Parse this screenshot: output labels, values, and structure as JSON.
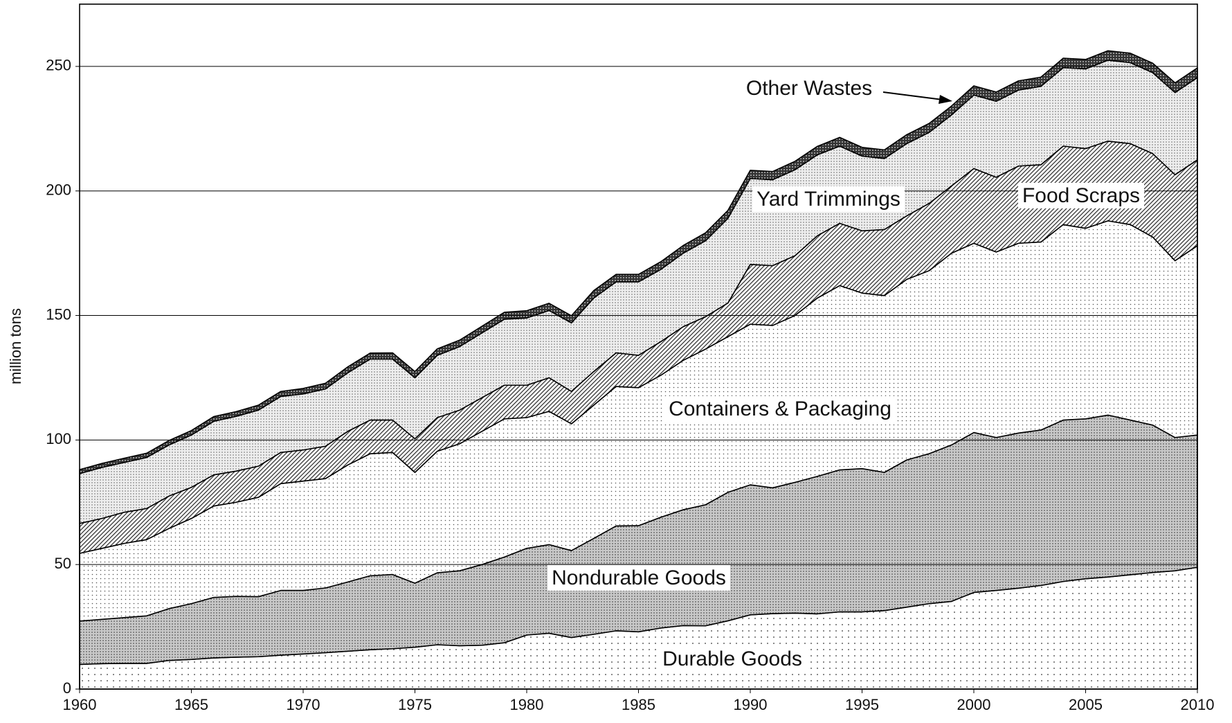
{
  "chart_data": {
    "type": "stacked_area",
    "y_label": "million tons",
    "x": [
      1960,
      1961,
      1962,
      1963,
      1964,
      1965,
      1966,
      1967,
      1968,
      1969,
      1970,
      1971,
      1972,
      1973,
      1974,
      1975,
      1976,
      1977,
      1978,
      1979,
      1980,
      1981,
      1982,
      1983,
      1984,
      1985,
      1986,
      1987,
      1988,
      1989,
      1990,
      1991,
      1992,
      1993,
      1994,
      1995,
      1996,
      1997,
      1998,
      1999,
      2000,
      2001,
      2002,
      2003,
      2004,
      2005,
      2006,
      2007,
      2008,
      2009,
      2010
    ],
    "xlim": [
      1960,
      2010
    ],
    "xticks": [
      1960,
      1965,
      1970,
      1975,
      1980,
      1985,
      1990,
      1995,
      2000,
      2005,
      2010
    ],
    "ylim": [
      0,
      275
    ],
    "yticks": [
      0,
      50,
      100,
      150,
      200,
      250
    ],
    "grid": true,
    "series": [
      {
        "name": "Durable Goods",
        "color": "#ffffff",
        "values": [
          9.9,
          10.2,
          10.3,
          10.3,
          11.5,
          11.9,
          12.5,
          12.8,
          13.0,
          13.6,
          14.1,
          14.6,
          15.2,
          15.8,
          16.2,
          16.8,
          17.8,
          17.4,
          17.6,
          18.6,
          21.7,
          22.4,
          20.7,
          22.0,
          23.4,
          23.0,
          24.5,
          25.5,
          25.4,
          27.4,
          29.8,
          30.3,
          30.5,
          30.2,
          31.0,
          31.0,
          31.5,
          32.9,
          34.3,
          35.2,
          38.8,
          39.6,
          40.5,
          41.6,
          43.2,
          44.3,
          45.0,
          45.9,
          46.8,
          47.5,
          48.9
        ]
      },
      {
        "name": "Nondurable Goods",
        "color": "#c8c8c8",
        "values": [
          17.4,
          17.8,
          18.4,
          19.1,
          20.8,
          22.4,
          24.3,
          24.4,
          24.1,
          26.0,
          25.5,
          26.0,
          27.8,
          29.7,
          29.8,
          25.7,
          28.9,
          30.1,
          32.4,
          34.4,
          34.8,
          35.6,
          34.9,
          38.5,
          42.1,
          42.6,
          44.5,
          46.5,
          48.6,
          51.6,
          52.2,
          50.5,
          52.5,
          55.2,
          57.0,
          57.5,
          55.5,
          59.1,
          60.2,
          62.8,
          64.2,
          61.4,
          62.3,
          62.4,
          64.8,
          64.2,
          65.0,
          62.1,
          59.2,
          53.5,
          53.1
        ]
      },
      {
        "name": "Containers & Packaging",
        "color": "#ffffff",
        "values": [
          27.2,
          28.5,
          29.8,
          30.6,
          32.2,
          34.2,
          36.7,
          37.8,
          39.9,
          42.9,
          43.9,
          43.9,
          47.0,
          49.0,
          49.0,
          44.5,
          48.8,
          51.0,
          53.5,
          55.5,
          52.5,
          53.5,
          50.9,
          53.5,
          56.0,
          55.4,
          57.0,
          60.0,
          62.5,
          62.5,
          64.5,
          65.2,
          67.0,
          71.6,
          74.0,
          70.5,
          71.0,
          72.5,
          73.5,
          77.0,
          76.0,
          74.5,
          76.2,
          75.5,
          78.5,
          76.5,
          78.0,
          78.5,
          75.5,
          71.0,
          76.0
        ]
      },
      {
        "name": "Food Scraps",
        "color": "#ffffff",
        "values": [
          12.0,
          12.0,
          12.5,
          12.5,
          13.0,
          12.5,
          12.5,
          12.5,
          12.5,
          12.5,
          12.5,
          13.0,
          13.5,
          13.5,
          13.0,
          13.5,
          13.5,
          13.5,
          13.5,
          13.5,
          13.0,
          13.5,
          13.0,
          13.5,
          13.5,
          13.0,
          13.5,
          13.5,
          13.0,
          13.5,
          24.0,
          24.0,
          24.0,
          25.0,
          25.0,
          25.0,
          26.5,
          25.5,
          27.0,
          27.0,
          30.0,
          30.0,
          31.0,
          31.0,
          31.5,
          32.0,
          32.0,
          32.5,
          33.5,
          34.5,
          34.5
        ]
      },
      {
        "name": "Yard Trimmings",
        "color": "#eeeeee",
        "values": [
          20.0,
          20.5,
          20.0,
          20.5,
          20.5,
          21.0,
          21.5,
          22.0,
          22.5,
          22.5,
          22.5,
          23.0,
          23.5,
          24.5,
          24.5,
          24.5,
          25.0,
          25.5,
          26.0,
          26.5,
          27.0,
          27.0,
          27.5,
          29.5,
          28.5,
          29.5,
          29.0,
          29.5,
          30.5,
          34.0,
          34.5,
          34.5,
          34.5,
          32.5,
          31.0,
          30.0,
          28.5,
          29.0,
          28.5,
          28.5,
          29.5,
          30.5,
          30.5,
          31.5,
          31.5,
          32.0,
          32.5,
          32.5,
          32.5,
          33.0,
          33.0
        ]
      },
      {
        "name": "Other Wastes",
        "color": "#333333",
        "values": [
          1.6,
          1.6,
          1.7,
          1.7,
          1.8,
          1.8,
          1.9,
          1.9,
          2.0,
          2.0,
          2.2,
          2.3,
          2.4,
          2.4,
          2.5,
          2.5,
          2.6,
          2.6,
          2.7,
          2.8,
          2.9,
          2.9,
          2.9,
          3.0,
          3.0,
          3.0,
          3.1,
          3.1,
          3.2,
          3.2,
          3.3,
          3.3,
          3.4,
          3.4,
          3.5,
          3.5,
          3.5,
          3.6,
          3.6,
          3.6,
          3.7,
          3.7,
          3.7,
          3.7,
          3.8,
          3.8,
          3.8,
          3.8,
          3.8,
          3.9,
          3.9
        ]
      }
    ]
  }
}
